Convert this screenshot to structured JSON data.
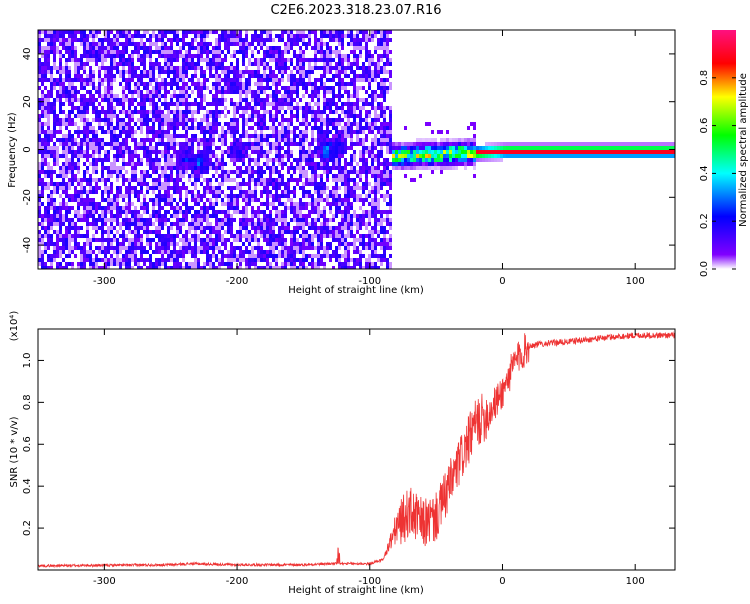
{
  "title": "C2E6.2023.318.23.07.R16",
  "chart_data": [
    {
      "type": "heatmap",
      "xlabel": "Height of straight line (km)",
      "ylabel": "Frequency (Hz)",
      "xlim": [
        -350,
        130
      ],
      "ylim": [
        -50,
        50
      ],
      "xticks": [
        -300,
        -200,
        -100,
        0,
        100
      ],
      "yticks": [
        -40,
        -20,
        0,
        20,
        40
      ],
      "xtick_labels": [
        "-300",
        "-200",
        "-100",
        "0",
        "100"
      ],
      "ytick_labels": [
        "-40",
        "-20",
        "0",
        "20",
        "40"
      ],
      "colorbar": {
        "label": "Normalized spectral amplitude",
        "range": [
          0,
          1
        ],
        "ticks": [
          0.0,
          0.2,
          0.4,
          0.6,
          0.8
        ],
        "tick_labels": [
          "0.0",
          "0.2",
          "0.4",
          "0.6",
          "0.8"
        ],
        "colors": [
          "#ffffff",
          "#8000ff",
          "#0000ff",
          "#00ffff",
          "#00ff00",
          "#ffff00",
          "#ff0000",
          "#ff0080"
        ]
      },
      "features": {
        "noise_region_x": [
          -350,
          -85
        ],
        "noise_level": 0.2,
        "clusters": [
          {
            "x": -240,
            "y": -3,
            "value": 0.35
          },
          {
            "x": -230,
            "y": -5,
            "value": 0.4
          },
          {
            "x": -200,
            "y": 0,
            "value": 0.3
          },
          {
            "x": -132,
            "y": 0,
            "value": 0.45
          },
          {
            "x": -125,
            "y": 2,
            "value": 0.35
          }
        ],
        "ridge_x": [
          -85,
          130
        ],
        "ridge_y": [
          -2,
          0
        ],
        "ridge_peak": 0.9
      }
    },
    {
      "type": "line",
      "xlabel": "Height of straight line (km)",
      "ylabel": "SNR (10 * v/v)",
      "y_multiplier": "(x10⁴)",
      "xlim": [
        -350,
        130
      ],
      "ylim": [
        0,
        1.15
      ],
      "xticks": [
        -300,
        -200,
        -100,
        0,
        100
      ],
      "yticks": [
        0.2,
        0.4,
        0.6,
        0.8,
        1.0
      ],
      "xtick_labels": [
        "-300",
        "-200",
        "-100",
        "0",
        "100"
      ],
      "ytick_labels": [
        "0.2",
        "0.4",
        "0.6",
        "0.8",
        "1.0"
      ],
      "color": "#ee3333",
      "x": [
        -350,
        -250,
        -235,
        -200,
        -150,
        -130,
        -120,
        -110,
        -100,
        -90,
        -80,
        -70,
        -60,
        -50,
        -40,
        -30,
        -20,
        -10,
        0,
        10,
        20,
        30,
        50,
        80,
        100,
        130
      ],
      "y": [
        0.02,
        0.025,
        0.03,
        0.025,
        0.025,
        0.03,
        0.03,
        0.03,
        0.03,
        0.05,
        0.2,
        0.28,
        0.22,
        0.25,
        0.4,
        0.55,
        0.7,
        0.75,
        0.85,
        1.0,
        1.07,
        1.08,
        1.09,
        1.11,
        1.12,
        1.12
      ]
    }
  ]
}
